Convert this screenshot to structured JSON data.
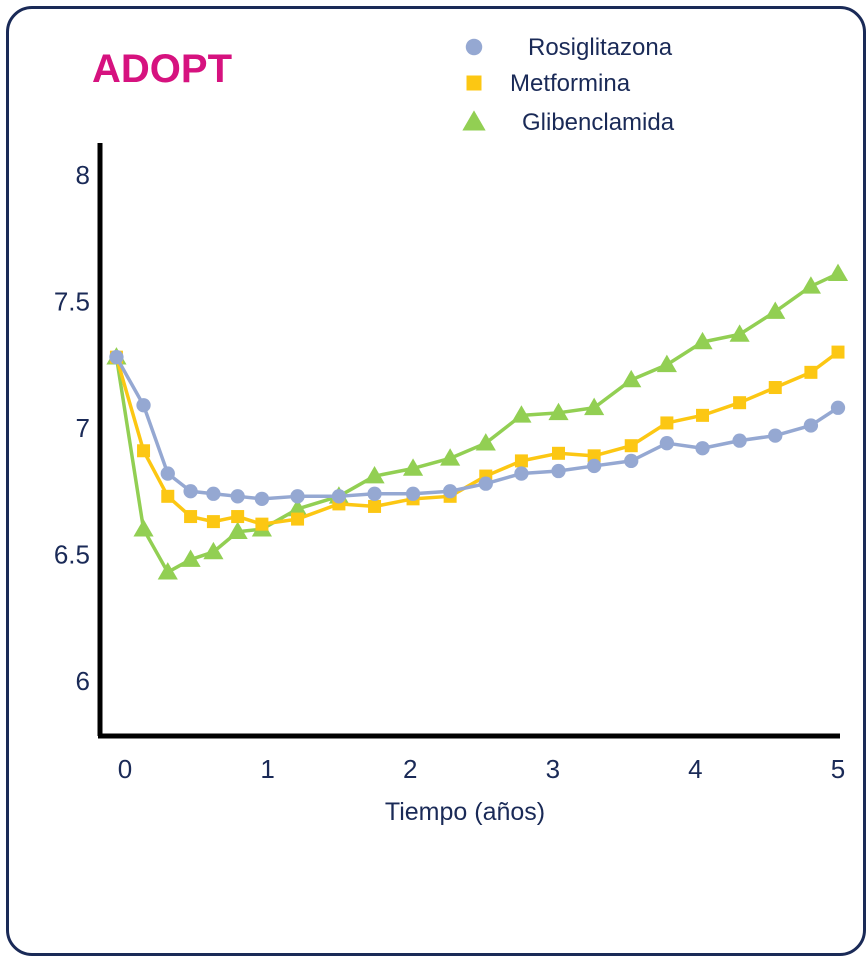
{
  "chart_data": {
    "type": "line",
    "title": "ADOPT",
    "xlabel": "Tiempo (años)",
    "ylabel": "",
    "xlim": [
      -0.1,
      5
    ],
    "ylim": [
      5.8,
      8.1
    ],
    "xticks": [
      0,
      1,
      2,
      3,
      4,
      5
    ],
    "yticks": [
      6,
      6.5,
      7,
      7.5,
      8
    ],
    "legend_position": "top-right",
    "series": [
      {
        "name": "Rosiglitazona",
        "marker": "circle",
        "color": "#95a8d2",
        "x": [
          -0.06,
          0.13,
          0.3,
          0.46,
          0.62,
          0.79,
          0.96,
          1.21,
          1.5,
          1.75,
          2.02,
          2.28,
          2.53,
          2.78,
          3.04,
          3.29,
          3.55,
          3.8,
          4.05,
          4.31,
          4.56,
          4.81,
          5.0
        ],
        "values": [
          7.28,
          7.09,
          6.82,
          6.75,
          6.74,
          6.73,
          6.72,
          6.73,
          6.73,
          6.74,
          6.74,
          6.75,
          6.78,
          6.82,
          6.83,
          6.85,
          6.87,
          6.94,
          6.92,
          6.95,
          6.97,
          7.01,
          7.08
        ]
      },
      {
        "name": "Metformina",
        "marker": "square",
        "color": "#fcc713",
        "x": [
          -0.06,
          0.13,
          0.3,
          0.46,
          0.62,
          0.79,
          0.96,
          1.21,
          1.5,
          1.75,
          2.02,
          2.28,
          2.53,
          2.78,
          3.04,
          3.29,
          3.55,
          3.8,
          4.05,
          4.31,
          4.56,
          4.81,
          5.0
        ],
        "values": [
          7.28,
          6.91,
          6.73,
          6.65,
          6.63,
          6.65,
          6.62,
          6.64,
          6.7,
          6.69,
          6.72,
          6.73,
          6.81,
          6.87,
          6.9,
          6.89,
          6.93,
          7.02,
          7.05,
          7.1,
          7.16,
          7.22,
          7.3
        ]
      },
      {
        "name": "Glibenclamida",
        "marker": "triangle",
        "color": "#92cf53",
        "x": [
          -0.06,
          0.13,
          0.3,
          0.46,
          0.62,
          0.79,
          0.96,
          1.21,
          1.5,
          1.75,
          2.02,
          2.28,
          2.53,
          2.78,
          3.04,
          3.29,
          3.55,
          3.8,
          4.05,
          4.31,
          4.56,
          4.81,
          5.0
        ],
        "values": [
          7.28,
          6.6,
          6.43,
          6.48,
          6.51,
          6.59,
          6.6,
          6.68,
          6.73,
          6.81,
          6.84,
          6.88,
          6.94,
          7.05,
          7.06,
          7.08,
          7.19,
          7.25,
          7.34,
          7.37,
          7.46,
          7.56,
          7.61
        ]
      }
    ]
  },
  "colors": {
    "title": "#d6127f",
    "axis": "#000000",
    "text": "#1a2a57",
    "frame": "#1a2a57"
  }
}
